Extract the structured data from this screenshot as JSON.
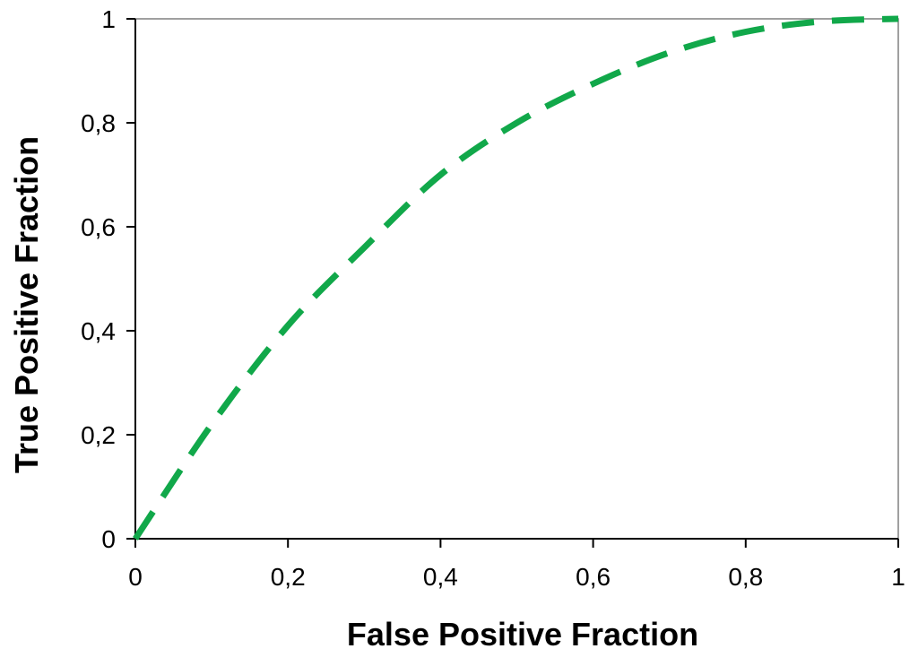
{
  "chart_data": {
    "type": "line",
    "title": "",
    "xlabel": "False Positive Fraction",
    "ylabel": "True Positive Fraction",
    "xlim": [
      0,
      1
    ],
    "ylim": [
      0,
      1
    ],
    "x_ticks": [
      0,
      0.2,
      0.4,
      0.6,
      0.8,
      1
    ],
    "y_ticks": [
      0,
      0.2,
      0.4,
      0.6,
      0.8,
      1
    ],
    "x_tick_labels": [
      "0",
      "0,2",
      "0,4",
      "0,6",
      "0,8",
      "1"
    ],
    "y_tick_labels": [
      "0",
      "0,2",
      "0,4",
      "0,6",
      "0,8",
      "1"
    ],
    "grid": false,
    "legend": "none",
    "series": [
      {
        "color": "#11a84a",
        "line_style": "dashed",
        "x": [
          0,
          0.1,
          0.2,
          0.3,
          0.4,
          0.5,
          0.6,
          0.7,
          0.8,
          0.9,
          1
        ],
        "y": [
          0,
          0.22,
          0.41,
          0.56,
          0.7,
          0.8,
          0.875,
          0.935,
          0.975,
          0.995,
          1
        ]
      }
    ]
  }
}
